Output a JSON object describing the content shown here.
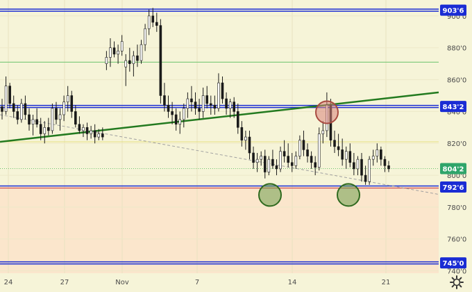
{
  "chart_data": {
    "type": "candlestick",
    "y_axis": {
      "ticks": [
        "900'0",
        "880'0",
        "860'0",
        "840'0",
        "820'0",
        "800'0",
        "780'0",
        "760'0",
        "740'0"
      ],
      "tick_values": [
        900,
        880,
        860,
        840,
        820,
        800,
        780,
        760,
        740
      ],
      "range": [
        738.5,
        910
      ]
    },
    "x_axis": {
      "ticks": [
        "24",
        "27",
        "Nov",
        "7",
        "14",
        "21"
      ]
    },
    "price_labels": [
      {
        "text": "903'6",
        "value": 903.6,
        "color": "#1a2cd4"
      },
      {
        "text": "843'2",
        "value": 843.2,
        "color": "#1a2cd4"
      },
      {
        "text": "804'2",
        "value": 804.2,
        "color": "#2fa56a"
      },
      {
        "text": "792'6",
        "value": 792.6,
        "color": "#1a2cd4"
      },
      {
        "text": "745'0",
        "value": 745.0,
        "color": "#1a2cd4"
      }
    ],
    "horizontal_levels": [
      {
        "value": 903.6,
        "color": "#1a2cd4",
        "style": "double"
      },
      {
        "value": 871,
        "color": "#6cc46c",
        "style": "thin"
      },
      {
        "value": 843.2,
        "color": "#1a2cd4",
        "style": "double"
      },
      {
        "value": 821,
        "color": "#e6e080",
        "style": "thin"
      },
      {
        "value": 804.2,
        "color": "#6cc46c",
        "style": "dotted"
      },
      {
        "value": 792.6,
        "color": "#1a2cd4",
        "style": "double-red"
      },
      {
        "value": 745.0,
        "color": "#1a2cd4",
        "style": "double"
      }
    ],
    "zones": [
      {
        "from": 792.6,
        "to": 910,
        "color": "#f6f4d8"
      },
      {
        "from": 738.5,
        "to": 792.6,
        "color": "#fbe6cc"
      }
    ],
    "trendlines": [
      {
        "color": "#237a1f",
        "style": "solid",
        "from_value": 821,
        "to_value": 852
      },
      {
        "color": "#a0a0a0",
        "style": "dashed",
        "from_value": 838,
        "to_value": 788
      }
    ],
    "markers": [
      {
        "kind": "circle",
        "color": "#d9847c",
        "value": 843
      },
      {
        "kind": "circle",
        "color": "#6f9e4f",
        "value": 792
      },
      {
        "kind": "circle",
        "color": "#6f9e4f",
        "value": 792
      }
    ],
    "candles": [
      [
        843,
        848,
        835,
        840
      ],
      [
        840,
        862,
        838,
        856
      ],
      [
        856,
        858,
        842,
        845
      ],
      [
        845,
        850,
        836,
        840
      ],
      [
        840,
        844,
        832,
        835
      ],
      [
        835,
        848,
        833,
        845
      ],
      [
        845,
        850,
        835,
        838
      ],
      [
        838,
        842,
        828,
        832
      ],
      [
        832,
        838,
        825,
        835
      ],
      [
        835,
        842,
        830,
        832
      ],
      [
        832,
        836,
        822,
        826
      ],
      [
        826,
        834,
        820,
        830
      ],
      [
        830,
        836,
        825,
        828
      ],
      [
        828,
        845,
        826,
        842
      ],
      [
        842,
        846,
        832,
        835
      ],
      [
        835,
        842,
        828,
        838
      ],
      [
        838,
        850,
        834,
        846
      ],
      [
        846,
        856,
        840,
        850
      ],
      [
        850,
        853,
        836,
        840
      ],
      [
        840,
        844,
        830,
        832
      ],
      [
        832,
        837,
        826,
        828
      ],
      [
        828,
        832,
        824,
        830
      ],
      [
        830,
        833,
        822,
        826
      ],
      [
        826,
        831,
        823,
        828
      ],
      [
        828,
        832,
        820,
        824
      ],
      [
        824,
        829,
        822,
        826
      ],
      [
        826,
        830,
        822,
        824
      ],
      [
        870,
        878,
        866,
        874
      ],
      [
        874,
        886,
        868,
        880
      ],
      [
        880,
        884,
        874,
        876
      ],
      [
        876,
        882,
        870,
        878
      ],
      [
        878,
        888,
        875,
        884
      ],
      [
        868,
        876,
        856,
        872
      ],
      [
        872,
        880,
        865,
        870
      ],
      [
        870,
        878,
        862,
        875
      ],
      [
        875,
        882,
        868,
        872
      ],
      [
        872,
        885,
        870,
        882
      ],
      [
        882,
        895,
        878,
        892
      ],
      [
        892,
        904,
        888,
        900
      ],
      [
        900,
        905,
        893,
        896
      ],
      [
        896,
        902,
        890,
        894
      ],
      [
        894,
        898,
        845,
        850
      ],
      [
        850,
        858,
        840,
        844
      ],
      [
        844,
        850,
        836,
        840
      ],
      [
        840,
        846,
        832,
        838
      ],
      [
        838,
        842,
        828,
        832
      ],
      [
        832,
        840,
        826,
        835
      ],
      [
        835,
        845,
        830,
        842
      ],
      [
        842,
        852,
        836,
        848
      ],
      [
        848,
        856,
        840,
        846
      ],
      [
        846,
        852,
        838,
        842
      ],
      [
        842,
        848,
        835,
        840
      ],
      [
        840,
        855,
        836,
        850
      ],
      [
        850,
        856,
        842,
        845
      ],
      [
        845,
        850,
        838,
        844
      ],
      [
        844,
        850,
        838,
        842
      ],
      [
        842,
        864,
        840,
        858
      ],
      [
        858,
        862,
        845,
        848
      ],
      [
        848,
        852,
        838,
        842
      ],
      [
        842,
        848,
        836,
        846
      ],
      [
        846,
        849,
        836,
        840
      ],
      [
        840,
        845,
        826,
        830
      ],
      [
        830,
        834,
        818,
        822
      ],
      [
        822,
        828,
        816,
        824
      ],
      [
        824,
        828,
        810,
        814
      ],
      [
        814,
        818,
        804,
        808
      ],
      [
        808,
        814,
        802,
        810
      ],
      [
        810,
        815,
        806,
        812
      ],
      [
        812,
        816,
        798,
        802
      ],
      [
        802,
        812,
        800,
        810
      ],
      [
        810,
        816,
        804,
        806
      ],
      [
        806,
        810,
        800,
        804
      ],
      [
        804,
        818,
        802,
        815
      ],
      [
        815,
        822,
        808,
        812
      ],
      [
        812,
        820,
        805,
        808
      ],
      [
        808,
        814,
        802,
        806
      ],
      [
        806,
        815,
        804,
        812
      ],
      [
        812,
        825,
        810,
        822
      ],
      [
        822,
        828,
        812,
        816
      ],
      [
        816,
        820,
        808,
        812
      ],
      [
        812,
        815,
        804,
        808
      ],
      [
        808,
        812,
        800,
        805
      ],
      [
        805,
        830,
        803,
        826
      ],
      [
        826,
        834,
        820,
        828
      ],
      [
        828,
        852,
        824,
        844
      ],
      [
        844,
        848,
        818,
        822
      ],
      [
        822,
        828,
        814,
        818
      ],
      [
        818,
        826,
        812,
        816
      ],
      [
        816,
        823,
        806,
        810
      ],
      [
        810,
        818,
        804,
        815
      ],
      [
        815,
        820,
        805,
        808
      ],
      [
        808,
        814,
        800,
        804
      ],
      [
        804,
        812,
        800,
        810
      ],
      [
        810,
        814,
        796,
        800
      ],
      [
        800,
        806,
        794,
        796
      ],
      [
        796,
        812,
        794,
        810
      ],
      [
        810,
        816,
        806,
        812
      ],
      [
        812,
        820,
        808,
        816
      ],
      [
        816,
        818,
        806,
        810
      ],
      [
        810,
        812,
        802,
        806
      ],
      [
        806,
        809,
        802,
        804
      ]
    ]
  }
}
